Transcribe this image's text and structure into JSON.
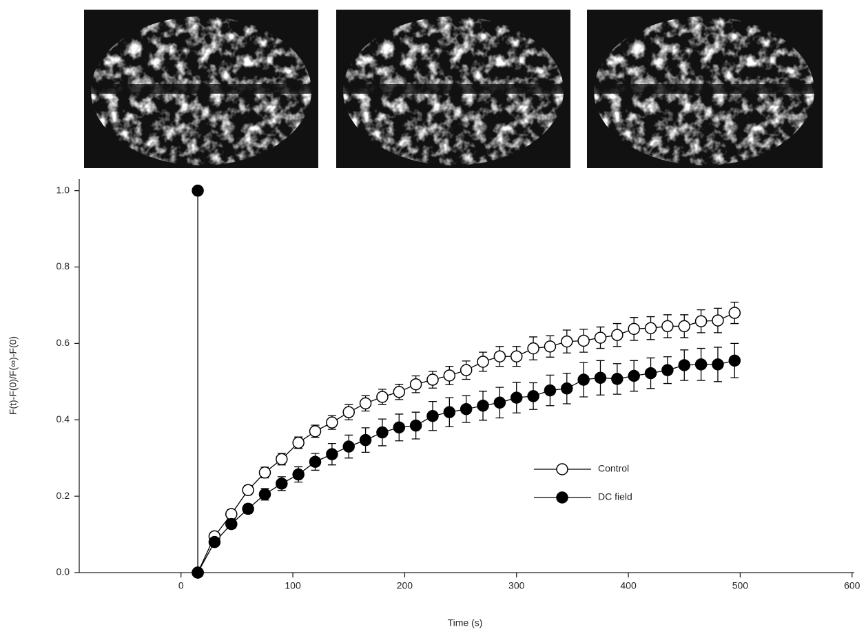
{
  "chart_data": {
    "type": "line",
    "x_label": "Time (s)",
    "y_label": "F(t)-F(0)/F(∞)-F(0)",
    "xlim": [
      -91,
      602
    ],
    "ylim": [
      0,
      1.03
    ],
    "xticks": [
      0,
      100,
      200,
      300,
      400,
      500,
      600
    ],
    "yticks": [
      {
        "value": 0,
        "label": "0.0"
      },
      0.2,
      0.4,
      0.6,
      0.8,
      {
        "value": 1,
        "label": "1.0"
      }
    ],
    "x": [
      15,
      30,
      45,
      60,
      75,
      90,
      105,
      120,
      135,
      150,
      165,
      180,
      195,
      210,
      225,
      240,
      255,
      270,
      285,
      300,
      315,
      330,
      345,
      360,
      375,
      390,
      405,
      420,
      435,
      450,
      465,
      480,
      495
    ],
    "series": [
      {
        "name": "Control",
        "color": "#000000",
        "filled": false,
        "values": [
          0,
          0.095,
          0.153,
          0.216,
          0.262,
          0.297,
          0.34,
          0.37,
          0.393,
          0.42,
          0.443,
          0.46,
          0.473,
          0.493,
          0.505,
          0.516,
          0.53,
          0.552,
          0.566,
          0.566,
          0.587,
          0.592,
          0.605,
          0.607,
          0.615,
          0.622,
          0.638,
          0.64,
          0.645,
          0.645,
          0.658,
          0.66,
          0.68
        ],
        "errors": [
          0,
          0.01,
          0.012,
          0.012,
          0.014,
          0.015,
          0.015,
          0.016,
          0.018,
          0.02,
          0.02,
          0.02,
          0.02,
          0.022,
          0.022,
          0.024,
          0.024,
          0.025,
          0.026,
          0.026,
          0.03,
          0.028,
          0.03,
          0.03,
          0.028,
          0.03,
          0.03,
          0.03,
          0.03,
          0.03,
          0.03,
          0.032,
          0.028
        ]
      },
      {
        "name": "DC field",
        "color": "#000000",
        "filled": true,
        "values": [
          0,
          0.08,
          0.127,
          0.167,
          0.205,
          0.233,
          0.257,
          0.29,
          0.31,
          0.33,
          0.347,
          0.367,
          0.38,
          0.385,
          0.41,
          0.42,
          0.428,
          0.437,
          0.445,
          0.458,
          0.462,
          0.477,
          0.482,
          0.505,
          0.51,
          0.507,
          0.515,
          0.522,
          0.53,
          0.543,
          0.545,
          0.545,
          0.555
        ],
        "errors": [
          0,
          0.01,
          0.012,
          0.012,
          0.015,
          0.018,
          0.02,
          0.022,
          0.028,
          0.03,
          0.032,
          0.035,
          0.035,
          0.035,
          0.038,
          0.038,
          0.035,
          0.038,
          0.04,
          0.04,
          0.035,
          0.04,
          0.04,
          0.045,
          0.045,
          0.04,
          0.04,
          0.04,
          0.035,
          0.04,
          0.042,
          0.045,
          0.045
        ]
      },
      {
        "color": "#000000",
        "filled": true,
        "x": [
          15,
          15
        ],
        "values": [
          0,
          1
        ]
      }
    ]
  }
}
